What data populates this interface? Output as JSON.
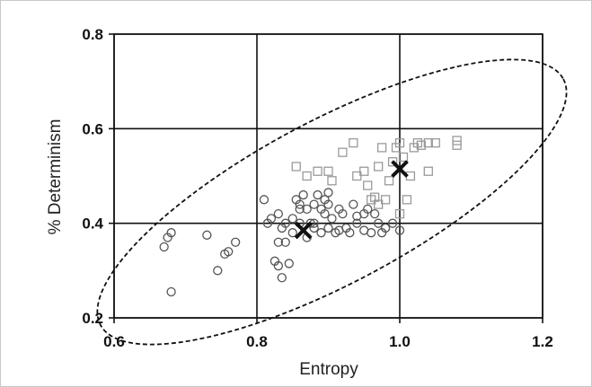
{
  "chart_data": {
    "type": "scatter",
    "xlabel": "Entropy",
    "ylabel": "% Determinism",
    "xlim": [
      0.6,
      1.2
    ],
    "ylim": [
      0.2,
      0.8
    ],
    "x_ticks": [
      0.6,
      0.8,
      1.0,
      1.2
    ],
    "x_tick_labels": [
      "0.6",
      "0.8",
      "1.0",
      "1.2"
    ],
    "y_ticks": [
      0.2,
      0.4,
      0.6,
      0.8
    ],
    "y_tick_labels": [
      "0.2",
      "0.4",
      "0.6",
      "0.8"
    ],
    "grid": true,
    "colors": {
      "circle_stroke": "#555555",
      "square_stroke": "#9a9a9a",
      "centroid": "#111111",
      "grid": "#111111",
      "ellipse": "#111111"
    },
    "series": [
      {
        "marker": "circle",
        "points": [
          [
            0.67,
            0.35
          ],
          [
            0.675,
            0.37
          ],
          [
            0.68,
            0.38
          ],
          [
            0.68,
            0.255
          ],
          [
            0.73,
            0.375
          ],
          [
            0.745,
            0.3
          ],
          [
            0.755,
            0.335
          ],
          [
            0.76,
            0.34
          ],
          [
            0.77,
            0.36
          ],
          [
            0.81,
            0.45
          ],
          [
            0.815,
            0.4
          ],
          [
            0.82,
            0.41
          ],
          [
            0.825,
            0.32
          ],
          [
            0.83,
            0.31
          ],
          [
            0.83,
            0.36
          ],
          [
            0.83,
            0.42
          ],
          [
            0.835,
            0.285
          ],
          [
            0.835,
            0.39
          ],
          [
            0.84,
            0.4
          ],
          [
            0.84,
            0.36
          ],
          [
            0.845,
            0.315
          ],
          [
            0.85,
            0.38
          ],
          [
            0.85,
            0.41
          ],
          [
            0.855,
            0.45
          ],
          [
            0.86,
            0.44
          ],
          [
            0.86,
            0.4
          ],
          [
            0.865,
            0.46
          ],
          [
            0.87,
            0.43
          ],
          [
            0.87,
            0.37
          ],
          [
            0.875,
            0.4
          ],
          [
            0.88,
            0.39
          ],
          [
            0.88,
            0.44
          ],
          [
            0.885,
            0.46
          ],
          [
            0.89,
            0.43
          ],
          [
            0.89,
            0.38
          ],
          [
            0.895,
            0.42
          ],
          [
            0.895,
            0.45
          ],
          [
            0.9,
            0.44
          ],
          [
            0.9,
            0.465
          ],
          [
            0.9,
            0.39
          ],
          [
            0.905,
            0.41
          ],
          [
            0.91,
            0.38
          ],
          [
            0.915,
            0.43
          ],
          [
            0.92,
            0.42
          ],
          [
            0.925,
            0.39
          ],
          [
            0.93,
            0.38
          ],
          [
            0.935,
            0.44
          ],
          [
            0.94,
            0.4
          ],
          [
            0.95,
            0.385
          ],
          [
            0.955,
            0.43
          ],
          [
            0.96,
            0.38
          ],
          [
            0.965,
            0.42
          ],
          [
            0.97,
            0.4
          ],
          [
            0.975,
            0.38
          ],
          [
            0.98,
            0.39
          ],
          [
            0.99,
            0.4
          ],
          [
            1.0,
            0.385
          ],
          [
            0.95,
            0.42
          ],
          [
            0.88,
            0.4
          ],
          [
            0.86,
            0.43
          ],
          [
            0.915,
            0.385
          ],
          [
            0.94,
            0.415
          ]
        ]
      },
      {
        "marker": "square",
        "points": [
          [
            0.855,
            0.52
          ],
          [
            0.87,
            0.5
          ],
          [
            0.885,
            0.51
          ],
          [
            0.9,
            0.51
          ],
          [
            0.905,
            0.49
          ],
          [
            0.92,
            0.55
          ],
          [
            0.935,
            0.57
          ],
          [
            0.94,
            0.5
          ],
          [
            0.95,
            0.51
          ],
          [
            0.955,
            0.48
          ],
          [
            0.96,
            0.45
          ],
          [
            0.965,
            0.455
          ],
          [
            0.97,
            0.52
          ],
          [
            0.975,
            0.56
          ],
          [
            0.98,
            0.45
          ],
          [
            0.985,
            0.49
          ],
          [
            0.99,
            0.53
          ],
          [
            0.995,
            0.56
          ],
          [
            1.0,
            0.57
          ],
          [
            1.0,
            0.42
          ],
          [
            1.005,
            0.54
          ],
          [
            1.01,
            0.45
          ],
          [
            1.015,
            0.5
          ],
          [
            1.02,
            0.56
          ],
          [
            1.025,
            0.57
          ],
          [
            1.03,
            0.565
          ],
          [
            1.04,
            0.57
          ],
          [
            1.04,
            0.51
          ],
          [
            1.05,
            0.57
          ],
          [
            1.08,
            0.565
          ],
          [
            1.08,
            0.575
          ],
          [
            0.97,
            0.44
          ]
        ]
      }
    ],
    "centroids": [
      {
        "x": 0.865,
        "y": 0.385,
        "marker": "x"
      },
      {
        "x": 1.0,
        "y": 0.515,
        "marker": "x"
      }
    ],
    "ellipse": {
      "style": "dashed",
      "cx": 0.905,
      "cy": 0.445,
      "rx": 0.367,
      "ry": 0.114,
      "rotation_deg": -28
    }
  }
}
